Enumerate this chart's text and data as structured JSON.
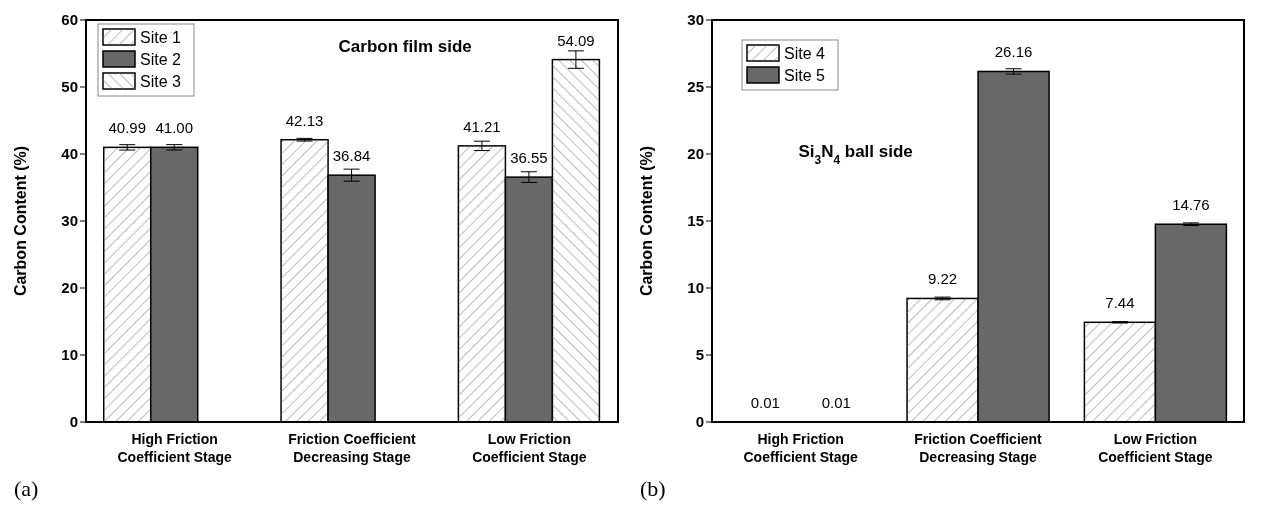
{
  "chart_data": [
    {
      "type": "bar",
      "title": "Carbon film side",
      "ylabel": "Carbon Content (%)",
      "categories": [
        "High Friction\nCoefficient Stage",
        "Friction Coefficient\nDecreasing Stage",
        "Low Friction\nCoefficient Stage"
      ],
      "series": [
        {
          "name": "Site 1",
          "color": "#ffffff",
          "values": [
            40.99,
            42.13,
            41.21
          ],
          "errors": [
            0.4,
            0.2,
            0.7
          ],
          "value_labels": [
            "40.99",
            "42.13",
            "41.21"
          ]
        },
        {
          "name": "Site 2",
          "color": "#686868",
          "values": [
            41.0,
            36.84,
            36.55
          ],
          "errors": [
            0.4,
            0.9,
            0.8
          ],
          "value_labels": [
            "41.00",
            "36.84",
            "36.55"
          ]
        },
        {
          "name": "Site 3",
          "color": "#ffffff",
          "values": [
            null,
            null,
            54.09
          ],
          "errors": [
            null,
            null,
            1.3
          ],
          "value_labels": [
            null,
            null,
            "54.09"
          ]
        }
      ],
      "ylim": [
        0,
        60
      ],
      "yticks": [
        0,
        10,
        20,
        30,
        40,
        50,
        60
      ],
      "legend": "top left",
      "annotations": [
        "(a)"
      ]
    },
    {
      "type": "bar",
      "title": "Si$_{3}$N$_{4}$ ball side",
      "ylabel": "Carbon Content (%)",
      "categories": [
        "High Friction\nCoefficient Stage",
        "Friction Coefficient\nDecreasing Stage",
        "Low Friction\nCoefficient Stage"
      ],
      "series": [
        {
          "name": "Site 4",
          "color": "#ffffff",
          "values": [
            0.01,
            9.22,
            7.44
          ],
          "errors": [
            null,
            0.1,
            0.05
          ],
          "value_labels": [
            "0.01",
            "9.22",
            "7.44"
          ]
        },
        {
          "name": "Site 5",
          "color": "#686868",
          "values": [
            0.01,
            26.16,
            14.76
          ],
          "errors": [
            null,
            0.2,
            0.1
          ],
          "value_labels": [
            "0.01",
            "26.16",
            "14.76"
          ]
        }
      ],
      "ylim": [
        0,
        30
      ],
      "yticks": [
        0,
        5,
        10,
        15,
        20,
        25,
        30
      ],
      "legend": "top left",
      "annotations": [
        "(b)"
      ]
    }
  ]
}
